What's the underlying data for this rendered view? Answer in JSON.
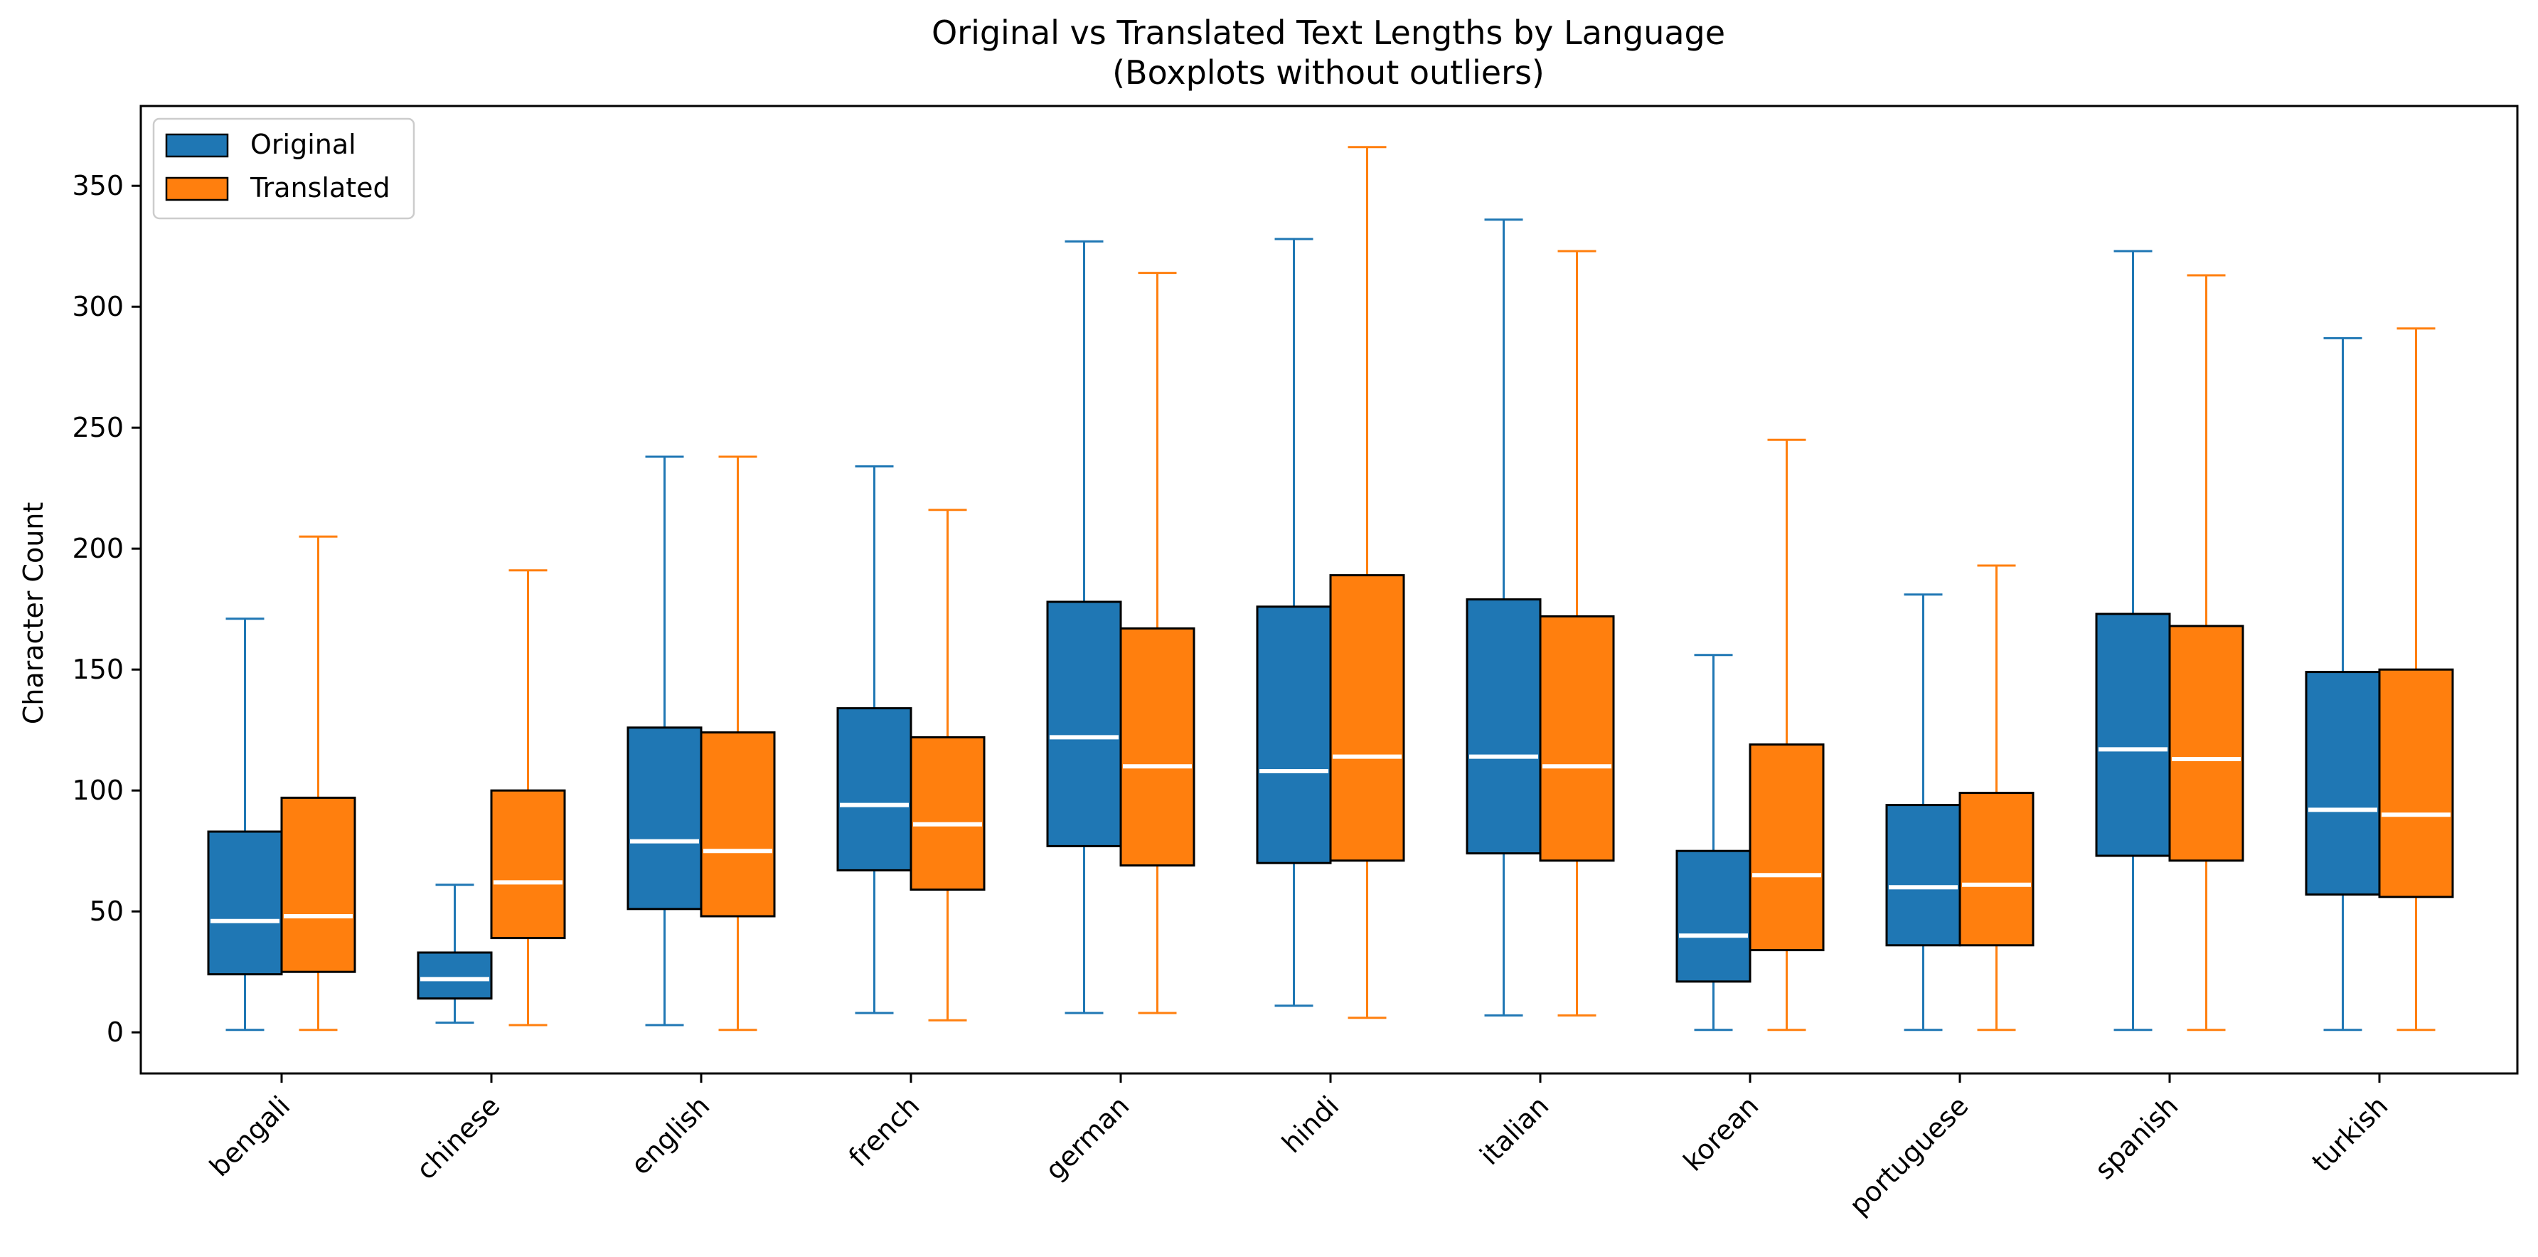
{
  "chart_data": {
    "type": "boxplot",
    "title": "Original vs Translated Text Lengths by Language",
    "subtitle": "(Boxplots without outliers)",
    "xlabel": "",
    "ylabel": "Character Count",
    "ylim": [
      -17,
      383
    ],
    "yticks": [
      0,
      50,
      100,
      150,
      200,
      250,
      300,
      350
    ],
    "categories": [
      "bengali",
      "chinese",
      "english",
      "french",
      "german",
      "hindi",
      "italian",
      "korean",
      "portuguese",
      "spanish",
      "turkish"
    ],
    "legend": {
      "position": "upper-left"
    },
    "series": [
      {
        "name": "Original",
        "color": "#1f77b4",
        "whisker_low": [
          1,
          4,
          3,
          8,
          8,
          11,
          7,
          1,
          1,
          1,
          1
        ],
        "q1": [
          24,
          14,
          51,
          67,
          77,
          70,
          74,
          21,
          36,
          73,
          57
        ],
        "median": [
          46,
          22,
          79,
          94,
          122,
          108,
          114,
          40,
          60,
          117,
          92
        ],
        "q3": [
          83,
          33,
          126,
          134,
          178,
          176,
          179,
          75,
          94,
          173,
          149
        ],
        "whisker_high": [
          171,
          61,
          238,
          234,
          327,
          328,
          336,
          156,
          181,
          323,
          287
        ]
      },
      {
        "name": "Translated",
        "color": "#ff7f0e",
        "whisker_low": [
          1,
          3,
          1,
          5,
          8,
          6,
          7,
          1,
          1,
          1,
          1
        ],
        "q1": [
          25,
          39,
          48,
          59,
          69,
          71,
          71,
          34,
          36,
          71,
          56
        ],
        "median": [
          48,
          62,
          75,
          86,
          110,
          114,
          110,
          65,
          61,
          113,
          90
        ],
        "q3": [
          97,
          100,
          124,
          122,
          167,
          189,
          172,
          119,
          99,
          168,
          150
        ],
        "whisker_high": [
          205,
          191,
          238,
          216,
          314,
          366,
          323,
          245,
          193,
          313,
          291
        ]
      }
    ]
  }
}
